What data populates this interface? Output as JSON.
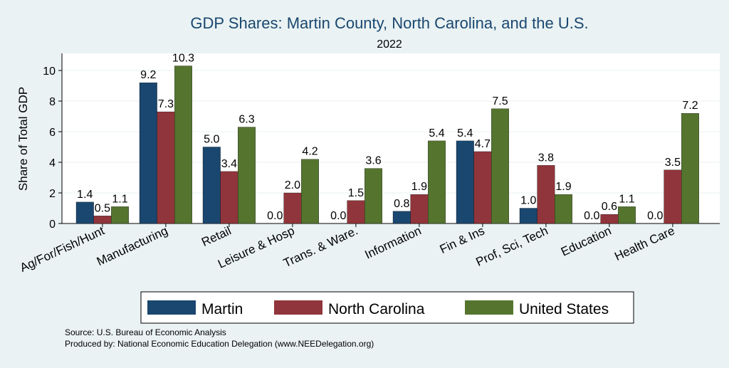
{
  "chart_data": {
    "type": "bar",
    "title": "GDP Shares: Martin County, North Carolina, and the U.S.",
    "subtitle": "2022",
    "ylabel": "Share of Total GDP",
    "xlabel": "",
    "ylim": [
      0,
      11
    ],
    "yticks": [
      0,
      2,
      4,
      6,
      8,
      10
    ],
    "grid": true,
    "legend_position": "bottom",
    "categories": [
      "Ag/For/Fish/Hunt",
      "Manufacturing",
      "Retail",
      "Leisure & Hosp",
      "Trans. & Ware.",
      "Information",
      "Fin & Ins",
      "Prof, Sci, Tech",
      "Education",
      "Health Care"
    ],
    "series": [
      {
        "name": "Martin",
        "color": "#1a476f",
        "values": [
          1.4,
          9.2,
          5.0,
          0.0,
          0.0,
          0.8,
          5.4,
          1.0,
          0.0,
          0.0
        ],
        "labels": [
          "1.4",
          "9.2",
          "5.0",
          "0.0",
          "0.0",
          "0.8",
          "5.4",
          "1.0",
          "0.0",
          "0.0"
        ]
      },
      {
        "name": "North Carolina",
        "color": "#90353b",
        "values": [
          0.5,
          7.3,
          3.4,
          2.0,
          1.5,
          1.9,
          4.7,
          3.8,
          0.6,
          3.5
        ],
        "labels": [
          "0.5",
          "7.3",
          "3.4",
          "2.0",
          "1.5",
          "1.9",
          "4.7",
          "3.8",
          "0.6",
          "3.5"
        ]
      },
      {
        "name": "United States",
        "color": "#55752f",
        "values": [
          1.1,
          10.3,
          6.3,
          4.2,
          3.6,
          5.4,
          7.5,
          1.9,
          1.1,
          7.2
        ],
        "labels": [
          "1.1",
          "10.3",
          "6.3",
          "4.2",
          "3.6",
          "5.4",
          "7.5",
          "1.9",
          "1.1",
          "7.2"
        ]
      }
    ]
  },
  "notes": {
    "source": "Source: U.S. Bureau of Economic Analysis",
    "produced_by": "Produced by: National Economic Education Delegation (www.NEEDelegation.org)"
  }
}
